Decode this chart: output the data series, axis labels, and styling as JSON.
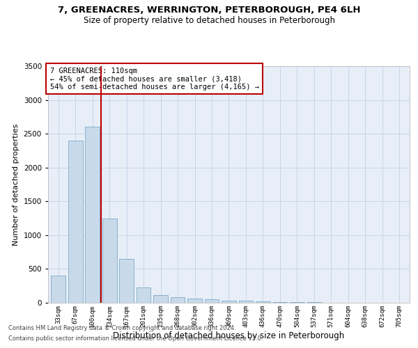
{
  "title": "7, GREENACRES, WERRINGTON, PETERBOROUGH, PE4 6LH",
  "subtitle": "Size of property relative to detached houses in Peterborough",
  "xlabel": "Distribution of detached houses by size in Peterborough",
  "ylabel": "Number of detached properties",
  "footnote1": "Contains HM Land Registry data © Crown copyright and database right 2024.",
  "footnote2": "Contains public sector information licensed under the Open Government Licence v3.0.",
  "annotation_line1": "7 GREENACRES: 110sqm",
  "annotation_line2": "← 45% of detached houses are smaller (3,418)",
  "annotation_line3": "54% of semi-detached houses are larger (4,165) →",
  "categories": [
    "33sqm",
    "67sqm",
    "100sqm",
    "134sqm",
    "167sqm",
    "201sqm",
    "235sqm",
    "268sqm",
    "302sqm",
    "336sqm",
    "369sqm",
    "403sqm",
    "436sqm",
    "470sqm",
    "504sqm",
    "537sqm",
    "571sqm",
    "604sqm",
    "638sqm",
    "672sqm",
    "705sqm"
  ],
  "values": [
    400,
    2400,
    2600,
    1250,
    650,
    230,
    115,
    85,
    65,
    50,
    35,
    30,
    18,
    12,
    8,
    6,
    4,
    3,
    2,
    2,
    1
  ],
  "bar_color": "#c8daea",
  "bar_edge_color": "#7baac8",
  "vline_color": "#bb0000",
  "vline_x_idx": 2.5,
  "annotation_box_color": "#bb0000",
  "grid_color": "#c8d4e8",
  "bg_color": "#e8eef8",
  "ylim": [
    0,
    3500
  ],
  "yticks": [
    0,
    500,
    1000,
    1500,
    2000,
    2500,
    3000,
    3500
  ],
  "title_fontsize": 9.5,
  "subtitle_fontsize": 8.5
}
